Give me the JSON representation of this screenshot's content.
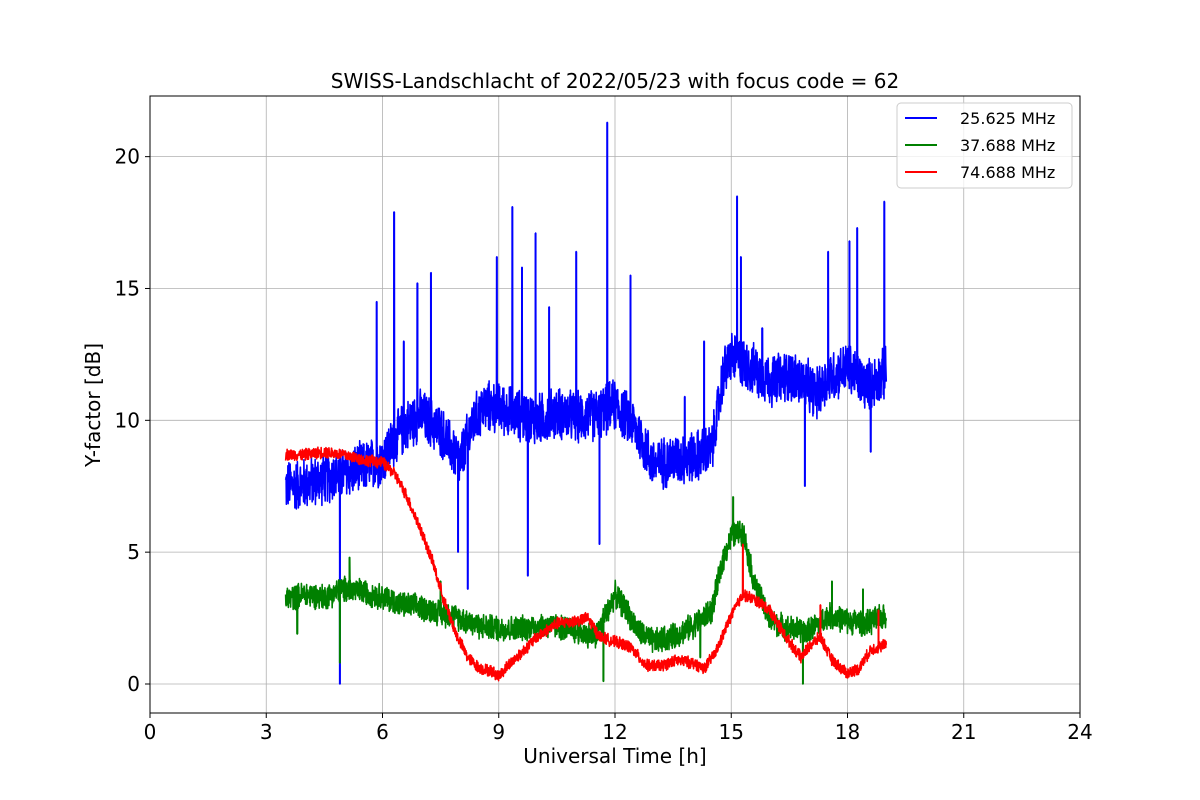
{
  "chart_data": {
    "type": "line",
    "title": "SWISS-Landschlacht of 2022/05/23 with focus code = 62",
    "xlabel": "Universal Time [h]",
    "ylabel": "Y-factor [dB]",
    "xlim": [
      0,
      24
    ],
    "ylim": [
      -1.1,
      22.3
    ],
    "xticks": [
      0,
      3,
      6,
      9,
      12,
      15,
      18,
      21,
      24
    ],
    "yticks": [
      0,
      5,
      10,
      15,
      20
    ],
    "grid": true,
    "legend_position": "top-right",
    "series": [
      {
        "name": "25.625 MHz",
        "color": "#0000ff",
        "noise": 1.1,
        "x": [
          3.5,
          4.0,
          4.5,
          5.0,
          5.5,
          6.0,
          6.3,
          6.6,
          7.0,
          7.5,
          8.0,
          8.3,
          8.6,
          9.0,
          9.5,
          10.0,
          10.5,
          11.0,
          11.5,
          12.0,
          12.5,
          13.0,
          13.5,
          14.0,
          14.5,
          14.8,
          15.0,
          15.5,
          16.0,
          16.5,
          16.9,
          17.2,
          17.5,
          18.0,
          18.5,
          19.0
        ],
        "y": [
          7.5,
          7.6,
          7.8,
          8.0,
          8.2,
          8.5,
          9.2,
          9.8,
          10.2,
          9.6,
          8.4,
          9.8,
          10.5,
          10.5,
          10.2,
          10.0,
          10.3,
          10.1,
          10.2,
          10.6,
          9.8,
          8.3,
          8.5,
          8.6,
          8.9,
          11.8,
          12.4,
          12.0,
          11.5,
          11.7,
          11.4,
          11.0,
          11.6,
          12.0,
          11.3,
          11.8
        ],
        "spikes": [
          [
            4.9,
            0.0
          ],
          [
            5.85,
            14.5
          ],
          [
            6.3,
            17.9
          ],
          [
            6.55,
            13.0
          ],
          [
            6.9,
            15.2
          ],
          [
            7.25,
            15.6
          ],
          [
            7.95,
            5.0
          ],
          [
            8.2,
            3.6
          ],
          [
            8.95,
            16.2
          ],
          [
            9.35,
            18.1
          ],
          [
            9.6,
            15.8
          ],
          [
            9.75,
            4.1
          ],
          [
            9.95,
            17.1
          ],
          [
            10.3,
            14.3
          ],
          [
            11.0,
            16.4
          ],
          [
            11.6,
            5.3
          ],
          [
            11.8,
            21.3
          ],
          [
            12.4,
            15.5
          ],
          [
            13.8,
            10.9
          ],
          [
            14.3,
            13.0
          ],
          [
            15.15,
            18.5
          ],
          [
            15.25,
            16.2
          ],
          [
            15.8,
            13.5
          ],
          [
            16.9,
            7.5
          ],
          [
            17.5,
            16.4
          ],
          [
            18.05,
            16.8
          ],
          [
            18.25,
            17.3
          ],
          [
            18.6,
            8.8
          ],
          [
            18.95,
            18.3
          ]
        ]
      },
      {
        "name": "37.688 MHz",
        "color": "#008000",
        "noise": 0.55,
        "x": [
          3.5,
          4.0,
          4.5,
          5.0,
          5.5,
          6.0,
          6.5,
          7.0,
          7.5,
          8.0,
          8.5,
          9.0,
          9.5,
          10.0,
          10.5,
          11.0,
          11.5,
          12.0,
          12.3,
          12.6,
          13.0,
          13.5,
          14.0,
          14.5,
          14.8,
          15.0,
          15.3,
          15.6,
          16.0,
          16.5,
          17.0,
          17.5,
          18.0,
          18.5,
          19.0
        ],
        "y": [
          3.2,
          3.4,
          3.3,
          3.6,
          3.5,
          3.3,
          3.0,
          2.9,
          2.7,
          2.5,
          2.2,
          2.1,
          2.1,
          2.2,
          2.2,
          2.0,
          1.8,
          3.4,
          2.8,
          2.0,
          1.6,
          1.8,
          2.2,
          2.8,
          4.8,
          5.6,
          5.8,
          3.8,
          2.4,
          2.1,
          2.0,
          2.6,
          2.4,
          2.3,
          2.6
        ],
        "spikes": [
          [
            3.8,
            1.9
          ],
          [
            4.9,
            0.8
          ],
          [
            5.15,
            4.8
          ],
          [
            7.5,
            3.9
          ],
          [
            11.7,
            0.1
          ],
          [
            14.2,
            1.0
          ],
          [
            15.05,
            7.1
          ],
          [
            16.85,
            0.0
          ],
          [
            17.6,
            3.9
          ],
          [
            18.4,
            3.6
          ]
        ]
      },
      {
        "name": "74.688 MHz",
        "color": "#ff0000",
        "noise": 0.25,
        "x": [
          3.5,
          4.0,
          4.5,
          5.0,
          5.5,
          6.0,
          6.3,
          6.6,
          7.0,
          7.3,
          7.6,
          7.9,
          8.2,
          8.5,
          8.8,
          9.0,
          9.3,
          9.6,
          10.0,
          10.5,
          11.0,
          11.3,
          11.6,
          12.0,
          12.4,
          12.8,
          13.2,
          13.6,
          14.0,
          14.3,
          14.6,
          15.0,
          15.3,
          15.6,
          16.0,
          16.4,
          16.8,
          17.0,
          17.3,
          17.6,
          18.0,
          18.3,
          18.6,
          19.0
        ],
        "y": [
          8.7,
          8.7,
          8.8,
          8.7,
          8.5,
          8.4,
          8.0,
          7.2,
          5.8,
          4.6,
          3.1,
          1.9,
          1.0,
          0.6,
          0.5,
          0.3,
          0.8,
          1.2,
          1.8,
          2.3,
          2.4,
          2.5,
          1.8,
          1.6,
          1.4,
          0.7,
          0.7,
          0.9,
          0.8,
          0.6,
          1.2,
          2.6,
          3.4,
          3.2,
          2.8,
          1.8,
          1.0,
          1.4,
          1.8,
          0.9,
          0.4,
          0.6,
          1.3,
          1.5
        ],
        "spikes": [
          [
            15.3,
            5.3
          ],
          [
            17.3,
            3.0
          ],
          [
            18.8,
            2.8
          ]
        ]
      }
    ]
  }
}
